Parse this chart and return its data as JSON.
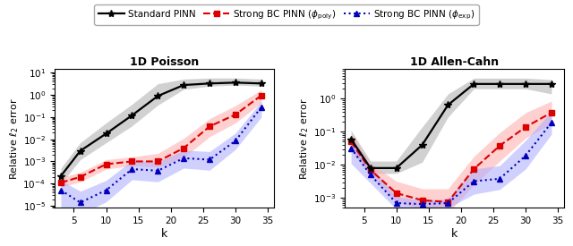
{
  "k": [
    3,
    6,
    10,
    14,
    18,
    22,
    26,
    30,
    34
  ],
  "poisson": {
    "black_mean": [
      0.00022,
      0.003,
      0.018,
      0.12,
      0.9,
      2.8,
      3.3,
      3.6,
      3.3
    ],
    "black_lo": [
      0.0001,
      0.0012,
      0.007,
      0.04,
      0.35,
      1.8,
      2.5,
      2.8,
      2.5
    ],
    "black_hi": [
      0.0005,
      0.007,
      0.055,
      0.38,
      3.2,
      5.2,
      5.8,
      5.8,
      5.2
    ],
    "red_mean": [
      0.00011,
      0.0002,
      0.00075,
      0.001,
      0.001,
      0.004,
      0.038,
      0.13,
      0.95
    ],
    "red_lo": [
      7e-05,
      0.00012,
      0.00045,
      0.00065,
      0.00055,
      0.0015,
      0.013,
      0.055,
      0.45
    ],
    "red_hi": [
      0.00019,
      0.00032,
      0.0012,
      0.0016,
      0.0023,
      0.011,
      0.085,
      0.33,
      1.7
    ],
    "blue_mean": [
      5e-05,
      1.4e-05,
      5e-05,
      0.00045,
      0.00038,
      0.0014,
      0.0012,
      0.0085,
      0.28
    ],
    "blue_lo": [
      8e-06,
      4e-06,
      1.5e-05,
      0.00015,
      0.00012,
      0.0005,
      0.0004,
      0.0035,
      0.1
    ],
    "blue_hi": [
      0.00014,
      4.5e-05,
      0.00014,
      0.0011,
      0.00095,
      0.0032,
      0.0028,
      0.019,
      0.52
    ],
    "ylim": [
      8e-06,
      15
    ]
  },
  "allen": {
    "black_mean": [
      0.06,
      0.008,
      0.008,
      0.04,
      0.65,
      2.8,
      2.8,
      2.8,
      2.8
    ],
    "black_lo": [
      0.03,
      0.0055,
      0.0055,
      0.012,
      0.28,
      2.0,
      2.0,
      2.0,
      1.4
    ],
    "black_hi": [
      0.11,
      0.013,
      0.013,
      0.14,
      1.4,
      4.2,
      4.2,
      4.2,
      3.8
    ],
    "red_mean": [
      0.05,
      0.007,
      0.0014,
      0.00085,
      0.00075,
      0.0075,
      0.038,
      0.14,
      0.38
    ],
    "red_lo": [
      0.028,
      0.0045,
      0.00075,
      0.00045,
      0.00035,
      0.0025,
      0.013,
      0.065,
      0.18
    ],
    "red_hi": [
      0.085,
      0.011,
      0.0032,
      0.0019,
      0.0019,
      0.018,
      0.095,
      0.38,
      0.85
    ],
    "blue_mean": [
      0.032,
      0.005,
      0.0007,
      0.00065,
      0.0007,
      0.0032,
      0.0038,
      0.019,
      0.19
    ],
    "blue_lo": [
      0.011,
      0.0028,
      0.00045,
      0.0005,
      0.0005,
      0.0013,
      0.0018,
      0.0075,
      0.085
    ],
    "blue_hi": [
      0.075,
      0.0095,
      0.0011,
      0.00085,
      0.00095,
      0.0075,
      0.0095,
      0.055,
      0.42
    ],
    "ylim": [
      0.0005,
      8
    ]
  },
  "black_color": "#000000",
  "red_color": "#dd0000",
  "blue_color": "#0000bb",
  "black_fill": "#888888",
  "red_fill": "#ffaaaa",
  "blue_fill": "#aaaaff",
  "legend_labels": [
    "Standard PINN",
    "Strong BC PINN ($\\phi_{\\mathrm{poly}}$)",
    "Strong BC PINN ($\\phi_{\\mathrm{exp}}$)"
  ],
  "title_poisson": "1D Poisson",
  "title_allen": "1D Allen-Cahn",
  "ylabel": "Relative $\\ell_2$ error",
  "xlabel": "k",
  "xticks": [
    5,
    10,
    15,
    20,
    25,
    30,
    35
  ]
}
